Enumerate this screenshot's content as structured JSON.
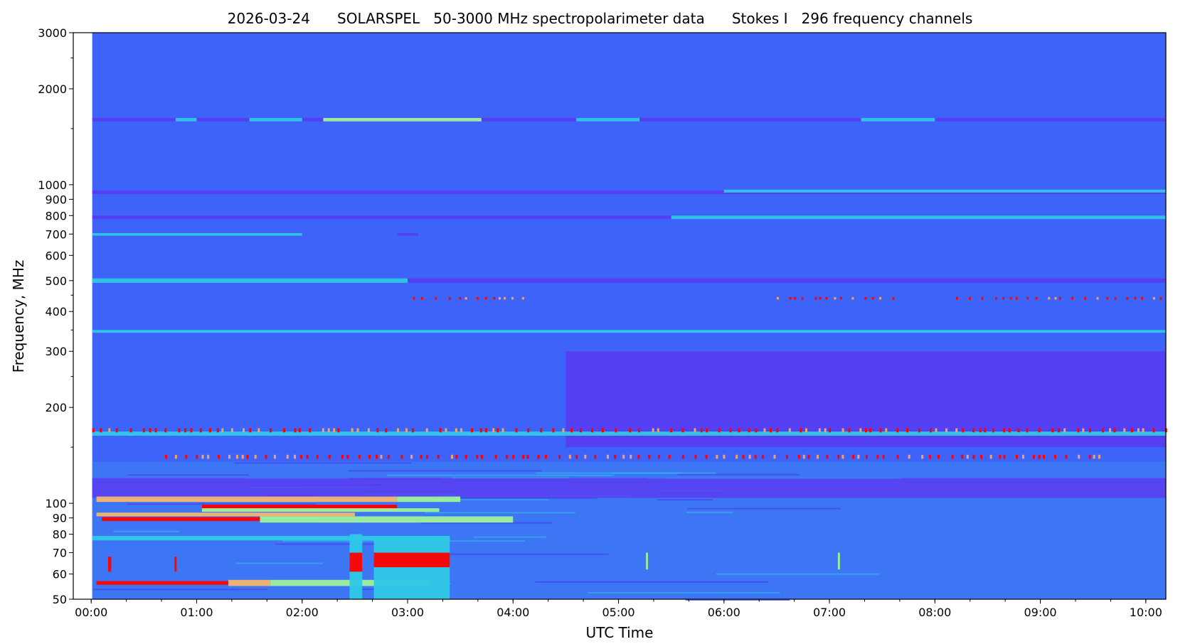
{
  "chart_data": {
    "type": "heatmap",
    "title": "2026-03-24      SOLARSPEL   50-3000 MHz spectropolarimeter data      Stokes I   296 frequency channels",
    "xlabel": "UTC Time",
    "ylabel": "Frequency, MHz",
    "yscale": "log",
    "ylim": [
      50,
      3000
    ],
    "xlim_hours": [
      -0.17,
      10.19
    ],
    "data_start_hours": 0.01,
    "x_ticks": [
      {
        "h": 0,
        "label": "00:00"
      },
      {
        "h": 1,
        "label": "01:00"
      },
      {
        "h": 2,
        "label": "02:00"
      },
      {
        "h": 3,
        "label": "03:00"
      },
      {
        "h": 4,
        "label": "04:00"
      },
      {
        "h": 5,
        "label": "05:00"
      },
      {
        "h": 6,
        "label": "06:00"
      },
      {
        "h": 7,
        "label": "07:00"
      },
      {
        "h": 8,
        "label": "08:00"
      },
      {
        "h": 9,
        "label": "09:00"
      },
      {
        "h": 10,
        "label": "10:00"
      }
    ],
    "y_ticks": [
      {
        "f": 50,
        "label": "50"
      },
      {
        "f": 60,
        "label": "60"
      },
      {
        "f": 70,
        "label": "70"
      },
      {
        "f": 80,
        "label": "80"
      },
      {
        "f": 90,
        "label": "90"
      },
      {
        "f": 100,
        "label": "100"
      },
      {
        "f": 200,
        "label": "200"
      },
      {
        "f": 300,
        "label": "300"
      },
      {
        "f": 400,
        "label": "400"
      },
      {
        "f": 500,
        "label": "500"
      },
      {
        "f": 600,
        "label": "600"
      },
      {
        "f": 700,
        "label": "700"
      },
      {
        "f": 800,
        "label": "800"
      },
      {
        "f": 900,
        "label": "900"
      },
      {
        "f": 1000,
        "label": "1000"
      },
      {
        "f": 2000,
        "label": "2000"
      },
      {
        "f": 3000,
        "label": "3000"
      }
    ],
    "y_minor_ticks": [
      150,
      250,
      350,
      450,
      1500,
      2500
    ],
    "colors": {
      "background": "#3d63f8",
      "low": "#5c34f0",
      "mid": "#2fc8e6",
      "high": "#9ef29a",
      "higher": "#f4b46e",
      "max": "#ff0000"
    },
    "features": [
      {
        "name": "low-band-noise",
        "f": [
          50,
          135
        ],
        "t": [
          0.01,
          10.2
        ],
        "level": "mid-low"
      },
      {
        "name": "purple-region-150-300",
        "f": [
          150,
          300
        ],
        "t": [
          4.5,
          10.2
        ],
        "level": "low"
      },
      {
        "name": "purple-band-100-120",
        "f": [
          104,
          120
        ],
        "t": [
          0.01,
          10.2
        ],
        "level": "low"
      },
      {
        "name": "band-1600-line",
        "f": [
          1580,
          1620
        ],
        "t": [
          0.01,
          10.2
        ],
        "level": "low"
      },
      {
        "name": "band-1600-burst",
        "f": [
          1580,
          1620
        ],
        "t": [
          2.2,
          3.7
        ],
        "level": "high"
      },
      {
        "name": "band-1600-seg-a",
        "f": [
          1580,
          1620
        ],
        "t": [
          0.8,
          1.0
        ],
        "level": "mid"
      },
      {
        "name": "band-1600-seg-b",
        "f": [
          1580,
          1620
        ],
        "t": [
          1.5,
          2.0
        ],
        "level": "mid"
      },
      {
        "name": "band-1600-seg-c",
        "f": [
          1580,
          1620
        ],
        "t": [
          4.6,
          5.2
        ],
        "level": "mid"
      },
      {
        "name": "band-1600-seg-d",
        "f": [
          1580,
          1620
        ],
        "t": [
          7.3,
          8.0
        ],
        "level": "mid"
      },
      {
        "name": "band-950-line",
        "f": [
          935,
          960
        ],
        "t": [
          0.01,
          10.2
        ],
        "level": "low"
      },
      {
        "name": "band-950-speckle",
        "f": [
          945,
          965
        ],
        "t": [
          6.0,
          10.2
        ],
        "level": "mid"
      },
      {
        "name": "band-790-line",
        "f": [
          780,
          800
        ],
        "t": [
          0.01,
          10.2
        ],
        "level": "low"
      },
      {
        "name": "band-790-speckle",
        "f": [
          780,
          800
        ],
        "t": [
          5.5,
          10.2
        ],
        "level": "mid"
      },
      {
        "name": "band-700-cyan",
        "f": [
          692,
          705
        ],
        "t": [
          0.01,
          2.0
        ],
        "level": "mid"
      },
      {
        "name": "band-700-purple",
        "f": [
          692,
          705
        ],
        "t": [
          2.9,
          3.1
        ],
        "level": "low"
      },
      {
        "name": "band-500-cyan",
        "f": [
          492,
          508
        ],
        "t": [
          0.01,
          3.0
        ],
        "level": "mid"
      },
      {
        "name": "band-500-purple",
        "f": [
          492,
          508
        ],
        "t": [
          3.0,
          10.2
        ],
        "level": "low"
      },
      {
        "name": "band-345-line",
        "f": [
          343,
          350
        ],
        "t": [
          0.01,
          10.2
        ],
        "level": "mid"
      },
      {
        "name": "band-165-line",
        "f": [
          163,
          168
        ],
        "t": [
          0.01,
          10.2
        ],
        "level": "mid"
      },
      {
        "name": "band-170-red-dots",
        "f": [
          167,
          172
        ],
        "t": [
          0.01,
          10.2
        ],
        "level": "max-dotted"
      },
      {
        "name": "band-440-red-dots-a",
        "f": [
          436,
          444
        ],
        "t": [
          3.05,
          4.1
        ],
        "level": "max-dotted"
      },
      {
        "name": "band-440-red-dots-b",
        "f": [
          436,
          444
        ],
        "t": [
          6.5,
          7.6
        ],
        "level": "max-dotted"
      },
      {
        "name": "band-440-red-dots-c",
        "f": [
          436,
          444
        ],
        "t": [
          8.2,
          10.2
        ],
        "level": "max-dotted"
      },
      {
        "name": "band-140-red-dots",
        "f": [
          138,
          142
        ],
        "t": [
          0.7,
          9.6
        ],
        "level": "max-dotted"
      },
      {
        "name": "band-103-orange",
        "f": [
          101,
          105
        ],
        "t": [
          0.05,
          2.9
        ],
        "level": "higher"
      },
      {
        "name": "band-103-green",
        "f": [
          101,
          105
        ],
        "t": [
          2.9,
          3.5
        ],
        "level": "high"
      },
      {
        "name": "band-97-red",
        "f": [
          96,
          99
        ],
        "t": [
          1.05,
          2.9
        ],
        "level": "max"
      },
      {
        "name": "band-95-green",
        "f": [
          94,
          96.5
        ],
        "t": [
          1.05,
          3.3
        ],
        "level": "high"
      },
      {
        "name": "band-92-orange",
        "f": [
          91,
          93.5
        ],
        "t": [
          0.05,
          2.5
        ],
        "level": "higher"
      },
      {
        "name": "band-89-red",
        "f": [
          88,
          90.5
        ],
        "t": [
          0.1,
          1.6
        ],
        "level": "max"
      },
      {
        "name": "band-89-green",
        "f": [
          87,
          91
        ],
        "t": [
          1.6,
          4.0
        ],
        "level": "high"
      },
      {
        "name": "band-78-cyan",
        "f": [
          76.5,
          79
        ],
        "t": [
          0.01,
          3.4
        ],
        "level": "mid"
      },
      {
        "name": "band-56-red",
        "f": [
          55.5,
          57
        ],
        "t": [
          0.05,
          1.3
        ],
        "level": "max"
      },
      {
        "name": "band-56-orange",
        "f": [
          55,
          57.5
        ],
        "t": [
          1.3,
          1.7
        ],
        "level": "higher"
      },
      {
        "name": "band-56-green",
        "f": [
          55,
          57.5
        ],
        "t": [
          1.7,
          3.2
        ],
        "level": "high"
      },
      {
        "name": "burst-0010",
        "f": [
          61,
          68
        ],
        "t": [
          0.16,
          0.19
        ],
        "level": "max"
      },
      {
        "name": "burst-0048",
        "f": [
          61,
          68
        ],
        "t": [
          0.79,
          0.81
        ],
        "level": "max"
      },
      {
        "name": "burst-0228-region",
        "f": [
          50,
          80
        ],
        "t": [
          2.45,
          2.57
        ],
        "level": "mid"
      },
      {
        "name": "burst-0228",
        "f": [
          61,
          70
        ],
        "t": [
          2.45,
          2.57
        ],
        "level": "max"
      },
      {
        "name": "burst-0242-region",
        "f": [
          50,
          79
        ],
        "t": [
          2.68,
          3.4
        ],
        "level": "mid"
      },
      {
        "name": "burst-0242",
        "f": [
          63,
          70
        ],
        "t": [
          2.68,
          3.4
        ],
        "level": "max"
      },
      {
        "name": "burst-0515",
        "f": [
          62,
          70
        ],
        "t": [
          5.26,
          5.28
        ],
        "level": "high"
      },
      {
        "name": "burst-0705",
        "f": [
          62,
          70
        ],
        "t": [
          7.08,
          7.1
        ],
        "level": "high"
      }
    ]
  }
}
